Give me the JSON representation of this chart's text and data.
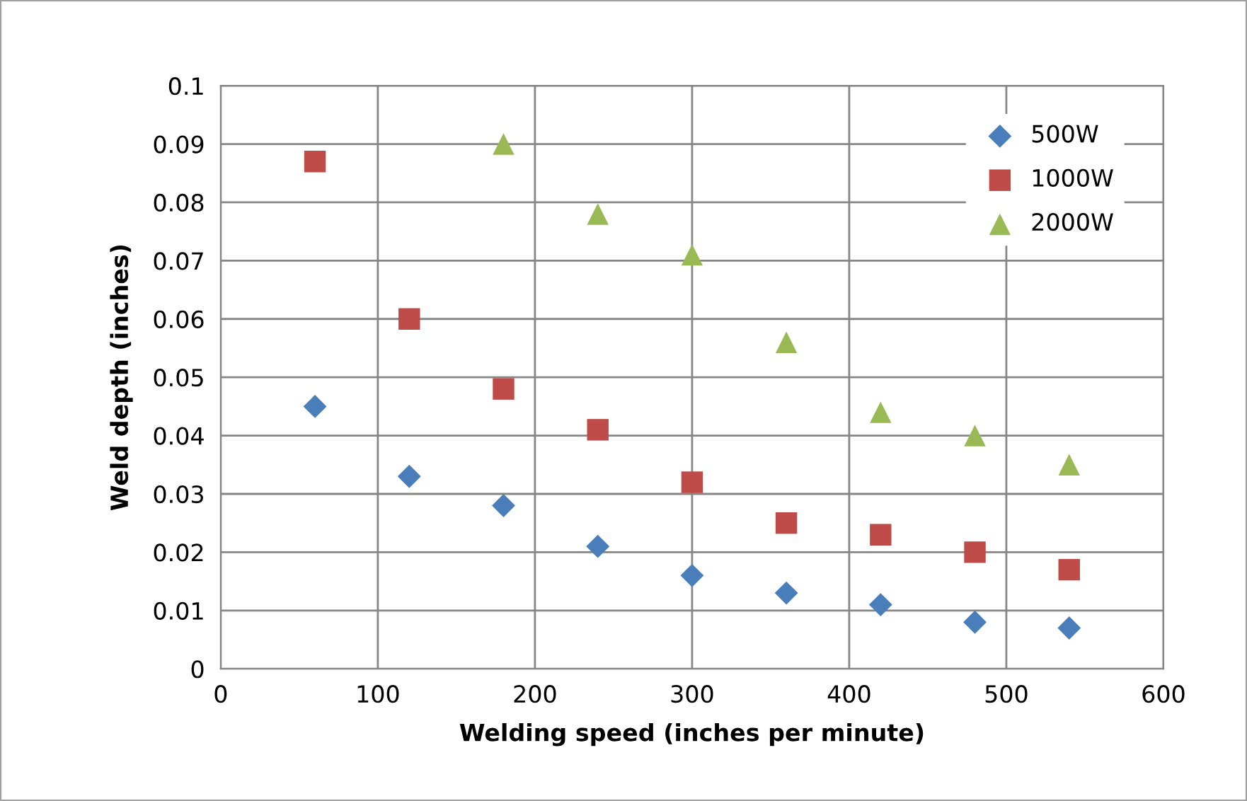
{
  "chart_data": {
    "type": "scatter",
    "xlabel": "Welding speed (inches per minute)",
    "ylabel": "Weld depth (inches)",
    "x": [
      60,
      120,
      180,
      240,
      300,
      360,
      420,
      480,
      540
    ],
    "series": [
      {
        "name": "500W",
        "color": "#4a7ebb",
        "marker": "diamond",
        "values": [
          0.045,
          0.033,
          0.028,
          0.021,
          0.016,
          0.013,
          0.011,
          0.008,
          0.007
        ]
      },
      {
        "name": "1000W",
        "color": "#be4b48",
        "marker": "square",
        "values": [
          0.087,
          0.06,
          0.048,
          0.041,
          0.032,
          0.025,
          0.023,
          0.02,
          0.017
        ]
      },
      {
        "name": "2000W",
        "color": "#98b954",
        "marker": "triangle",
        "values": [
          null,
          null,
          0.09,
          0.078,
          0.071,
          0.056,
          0.044,
          0.04,
          0.035
        ]
      }
    ],
    "xlim": [
      0,
      600
    ],
    "xticks": [
      0,
      100,
      200,
      300,
      400,
      500,
      600
    ],
    "ylim": [
      0,
      0.1
    ],
    "yticks": [
      {
        "value": 0,
        "label": "0"
      },
      0.01,
      0.02,
      0.03,
      0.04,
      0.05,
      0.06,
      0.07,
      0.08,
      0.09,
      0.1
    ],
    "grid": true,
    "legend": "top right"
  }
}
